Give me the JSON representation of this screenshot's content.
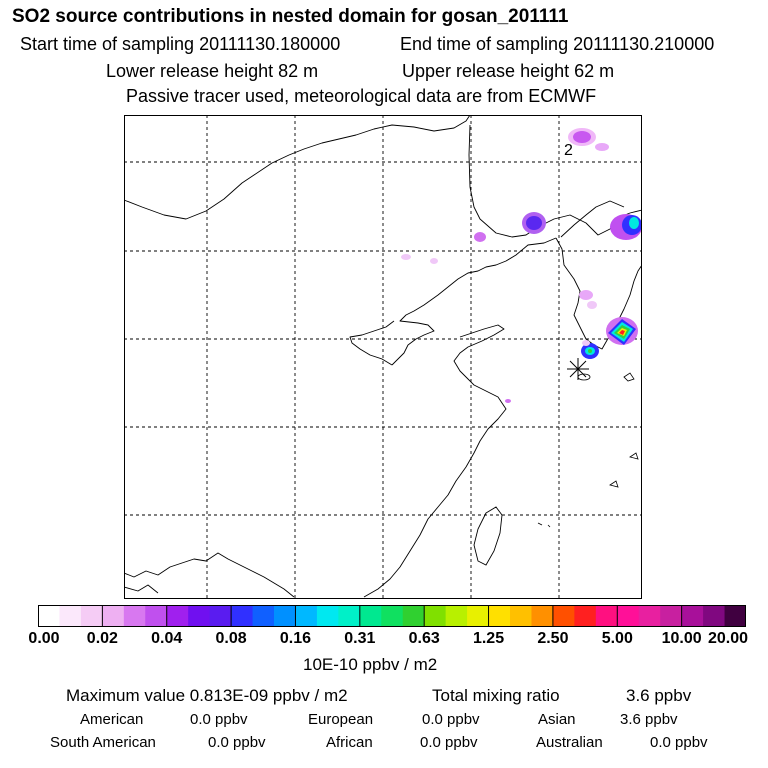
{
  "header": {
    "title": "SO2 source contributions in nested domain for gosan_201111",
    "start": "Start time of sampling 20111130.180000",
    "end": "End time of sampling 20111130.210000",
    "lower": "Lower release height   82 m",
    "upper": "Upper release height   62 m",
    "tracer": "Passive tracer used, meteorological data are from ECMWF"
  },
  "map": {
    "label_2": "2",
    "station_marker": "receptor-star",
    "plume_colors": [
      "#f0c8f8",
      "#d070f0",
      "#a020f0",
      "#5a28f0",
      "#00a0ff",
      "#00e8e0",
      "#30d040",
      "#f0f000",
      "#ff2020",
      "#ff10a0"
    ]
  },
  "colorbar": {
    "colors": [
      "#ffffff",
      "#fbe8fb",
      "#f5ccf5",
      "#eeb0f2",
      "#d878f0",
      "#c050ee",
      "#a020ee",
      "#7010f0",
      "#5a1cf0",
      "#3030ff",
      "#1060ff",
      "#0090ff",
      "#00b8ff",
      "#00e8f0",
      "#00f0c8",
      "#00e890",
      "#10e060",
      "#30d030",
      "#80e000",
      "#b8f000",
      "#e8f000",
      "#ffe000",
      "#ffc000",
      "#ff9000",
      "#ff5000",
      "#ff2020",
      "#ff1080",
      "#ff1098",
      "#e820a0",
      "#c820a0",
      "#a8109a",
      "#800880",
      "#400040"
    ],
    "ticks": [
      "0.00",
      "0.02",
      "0.04",
      "0.08",
      "0.16",
      "0.31",
      "0.63",
      "1.25",
      "2.50",
      "5.00",
      "10.00",
      "20.00"
    ],
    "unit": "10E-10 ppbv / m2"
  },
  "summary": {
    "max_label": "Maximum value  0.813E-09 ppbv / m2",
    "total_label": "Total mixing ratio",
    "total_value": "3.6 ppbv",
    "regions": [
      {
        "name": "American",
        "value": "0.0 ppbv"
      },
      {
        "name": "European",
        "value": "0.0 ppbv"
      },
      {
        "name": "Asian",
        "value": "3.6 ppbv"
      },
      {
        "name": "South American",
        "value": "0.0 ppbv"
      },
      {
        "name": "African",
        "value": "0.0 ppbv"
      },
      {
        "name": "Australian",
        "value": "0.0 ppbv"
      }
    ]
  }
}
